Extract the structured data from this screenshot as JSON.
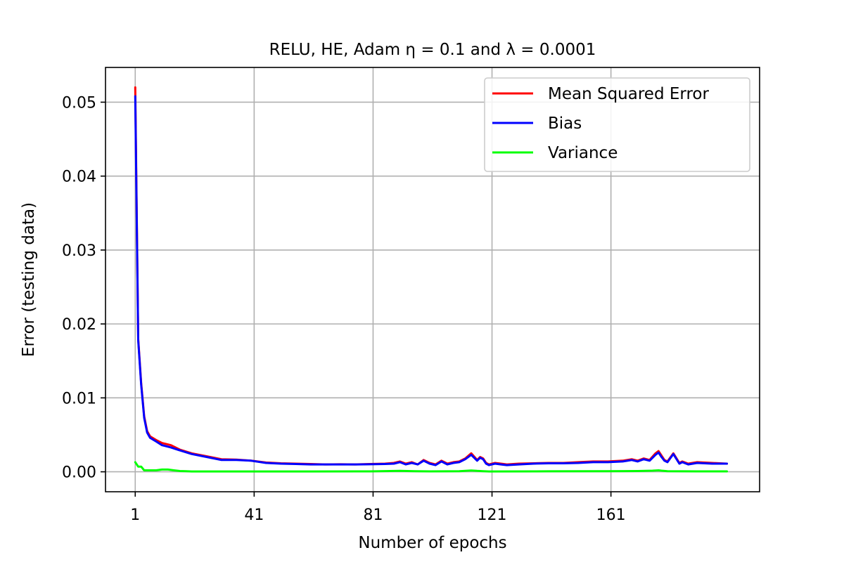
{
  "chart_data": {
    "type": "line",
    "title": "RELU, HE, Adam η = 0.1 and λ = 0.0001",
    "xlabel": "Number of epochs",
    "ylabel": "Error (testing data)",
    "xlim": [
      -9,
      211
    ],
    "ylim": [
      -0.0027,
      0.0547
    ],
    "xticks": [
      1,
      41,
      81,
      121,
      161
    ],
    "yticks": [
      0.0,
      0.01,
      0.02,
      0.03,
      0.04,
      0.05
    ],
    "ytick_labels": [
      "0.00",
      "0.01",
      "0.02",
      "0.03",
      "0.04",
      "0.05"
    ],
    "grid": true,
    "legend_position": "top-right",
    "series": [
      {
        "name": "Mean Squared Error",
        "color": "#ff0000",
        "x": [
          1,
          2,
          3,
          4,
          5,
          6,
          8,
          10,
          13,
          16,
          20,
          25,
          30,
          35,
          40,
          45,
          50,
          55,
          60,
          65,
          70,
          75,
          80,
          85,
          88,
          90,
          92,
          94,
          96,
          98,
          100,
          102,
          104,
          106,
          108,
          110,
          112,
          114,
          116,
          117,
          118,
          119,
          120,
          122,
          124,
          126,
          130,
          135,
          140,
          145,
          150,
          155,
          160,
          165,
          168,
          170,
          172,
          174,
          176,
          177,
          178,
          179,
          180,
          182,
          184,
          185,
          187,
          190,
          195,
          200
        ],
        "y": [
          0.052,
          0.018,
          0.012,
          0.0075,
          0.0055,
          0.0048,
          0.0043,
          0.0039,
          0.0036,
          0.003,
          0.0025,
          0.0021,
          0.0017,
          0.00165,
          0.0015,
          0.00125,
          0.00115,
          0.0011,
          0.00105,
          0.001,
          0.00102,
          0.001,
          0.00105,
          0.0011,
          0.0012,
          0.0014,
          0.0011,
          0.0013,
          0.001,
          0.0016,
          0.0012,
          0.001,
          0.0015,
          0.0011,
          0.0013,
          0.0014,
          0.0018,
          0.0025,
          0.0016,
          0.002,
          0.0018,
          0.0012,
          0.001,
          0.0012,
          0.0011,
          0.001,
          0.0011,
          0.00115,
          0.0012,
          0.0012,
          0.0013,
          0.0014,
          0.0014,
          0.0015,
          0.0017,
          0.0015,
          0.0018,
          0.0016,
          0.0025,
          0.0028,
          0.0022,
          0.0016,
          0.0014,
          0.0025,
          0.0012,
          0.0014,
          0.0011,
          0.0013,
          0.0012,
          0.0011
        ]
      },
      {
        "name": "Bias",
        "color": "#0000ff",
        "x": [
          1,
          2,
          3,
          4,
          5,
          6,
          8,
          10,
          13,
          16,
          20,
          25,
          30,
          35,
          40,
          45,
          50,
          55,
          60,
          65,
          70,
          75,
          80,
          85,
          88,
          90,
          92,
          94,
          96,
          98,
          100,
          102,
          104,
          106,
          108,
          110,
          112,
          114,
          116,
          117,
          118,
          119,
          120,
          122,
          124,
          126,
          130,
          135,
          140,
          145,
          150,
          155,
          160,
          165,
          168,
          170,
          172,
          174,
          176,
          177,
          178,
          179,
          180,
          182,
          184,
          185,
          187,
          190,
          195,
          200
        ],
        "y": [
          0.0508,
          0.0178,
          0.0118,
          0.0073,
          0.0053,
          0.0046,
          0.0041,
          0.0036,
          0.0033,
          0.0029,
          0.0024,
          0.002,
          0.0016,
          0.0016,
          0.0015,
          0.0012,
          0.0011,
          0.00105,
          0.001,
          0.001,
          0.001,
          0.001,
          0.00102,
          0.00105,
          0.0011,
          0.0013,
          0.001,
          0.0012,
          0.001,
          0.0015,
          0.0011,
          0.0009,
          0.0014,
          0.001,
          0.0012,
          0.0013,
          0.0017,
          0.0023,
          0.0015,
          0.0019,
          0.0017,
          0.0011,
          0.0009,
          0.0011,
          0.001,
          0.0009,
          0.001,
          0.0011,
          0.00115,
          0.00115,
          0.0012,
          0.0013,
          0.0013,
          0.0014,
          0.0016,
          0.0014,
          0.0017,
          0.0015,
          0.0023,
          0.0026,
          0.002,
          0.0015,
          0.0013,
          0.0024,
          0.0011,
          0.0013,
          0.001,
          0.0012,
          0.0011,
          0.0011
        ]
      },
      {
        "name": "Variance",
        "color": "#00ff00",
        "x": [
          1,
          2,
          3,
          4,
          5,
          6,
          8,
          10,
          12,
          14,
          16,
          18,
          20,
          25,
          30,
          40,
          60,
          80,
          90,
          95,
          100,
          110,
          114,
          116,
          118,
          120,
          140,
          160,
          170,
          175,
          177,
          178,
          180,
          190,
          200
        ],
        "y": [
          0.0013,
          0.0007,
          0.0007,
          0.0002,
          0.0002,
          0.0002,
          0.0002,
          0.0003,
          0.0003,
          0.0002,
          0.0001,
          8e-05,
          5e-05,
          5e-05,
          5e-05,
          5e-05,
          5e-05,
          6e-05,
          0.00012,
          8e-05,
          6e-05,
          8e-05,
          0.00018,
          0.00012,
          8e-05,
          5e-05,
          7e-05,
          8e-05,
          0.0001,
          0.00015,
          0.0002,
          0.00015,
          8e-05,
          6e-05,
          6e-05
        ]
      }
    ]
  }
}
